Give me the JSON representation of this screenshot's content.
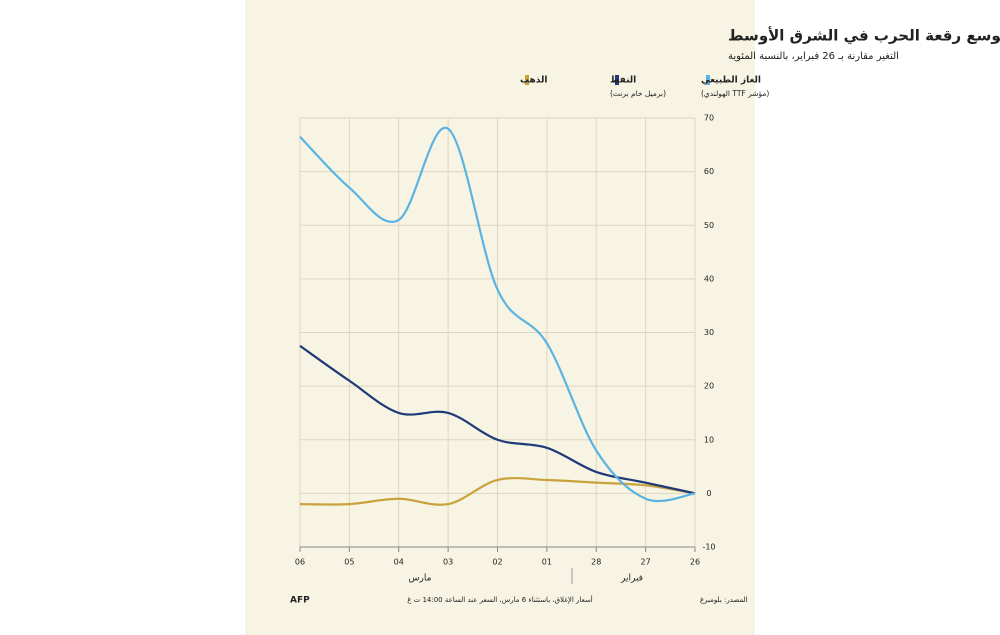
{
  "chart_data": {
    "type": "line",
    "title": "ارتفاع أسعار الغاز مع توسع رقعة الحرب في الشرق الأوسط",
    "subtitle": "التغير مقارنة بـ 26 فبراير، بالنسبة المئوية",
    "categories": [
      "26",
      "27",
      "28",
      "01",
      "02",
      "03",
      "04",
      "05",
      "06"
    ],
    "month_labels": [
      "فبراير",
      "مارس"
    ],
    "series": [
      {
        "name": "الغاز الطبيعي",
        "description": "(مؤشر TTF الهولندي)",
        "color": "#5ab4e3",
        "values": [
          0,
          -1,
          8,
          28,
          38,
          68,
          51,
          57,
          66.5
        ]
      },
      {
        "name": "النفط",
        "description": "(برميل خام برنت)",
        "color": "#1f3a78",
        "values": [
          0,
          2,
          4,
          8.5,
          10,
          15,
          15,
          21,
          27.5
        ]
      },
      {
        "name": "الذهب",
        "color": "#c9a23c",
        "values": [
          0,
          1.5,
          2,
          2.5,
          2.5,
          -2,
          -1,
          -2,
          -2
        ]
      }
    ],
    "ylim": [
      -10,
      70
    ],
    "yticks": [
      -10,
      0,
      10,
      20,
      30,
      40,
      50,
      60,
      70
    ],
    "grid": true,
    "source": "المصدر: بلومبرغ",
    "note": "أسعار الإغلاق، باستثناء 6 مارس، السعر عند الساعة 14:00 ت غ",
    "logo": "AFP"
  }
}
